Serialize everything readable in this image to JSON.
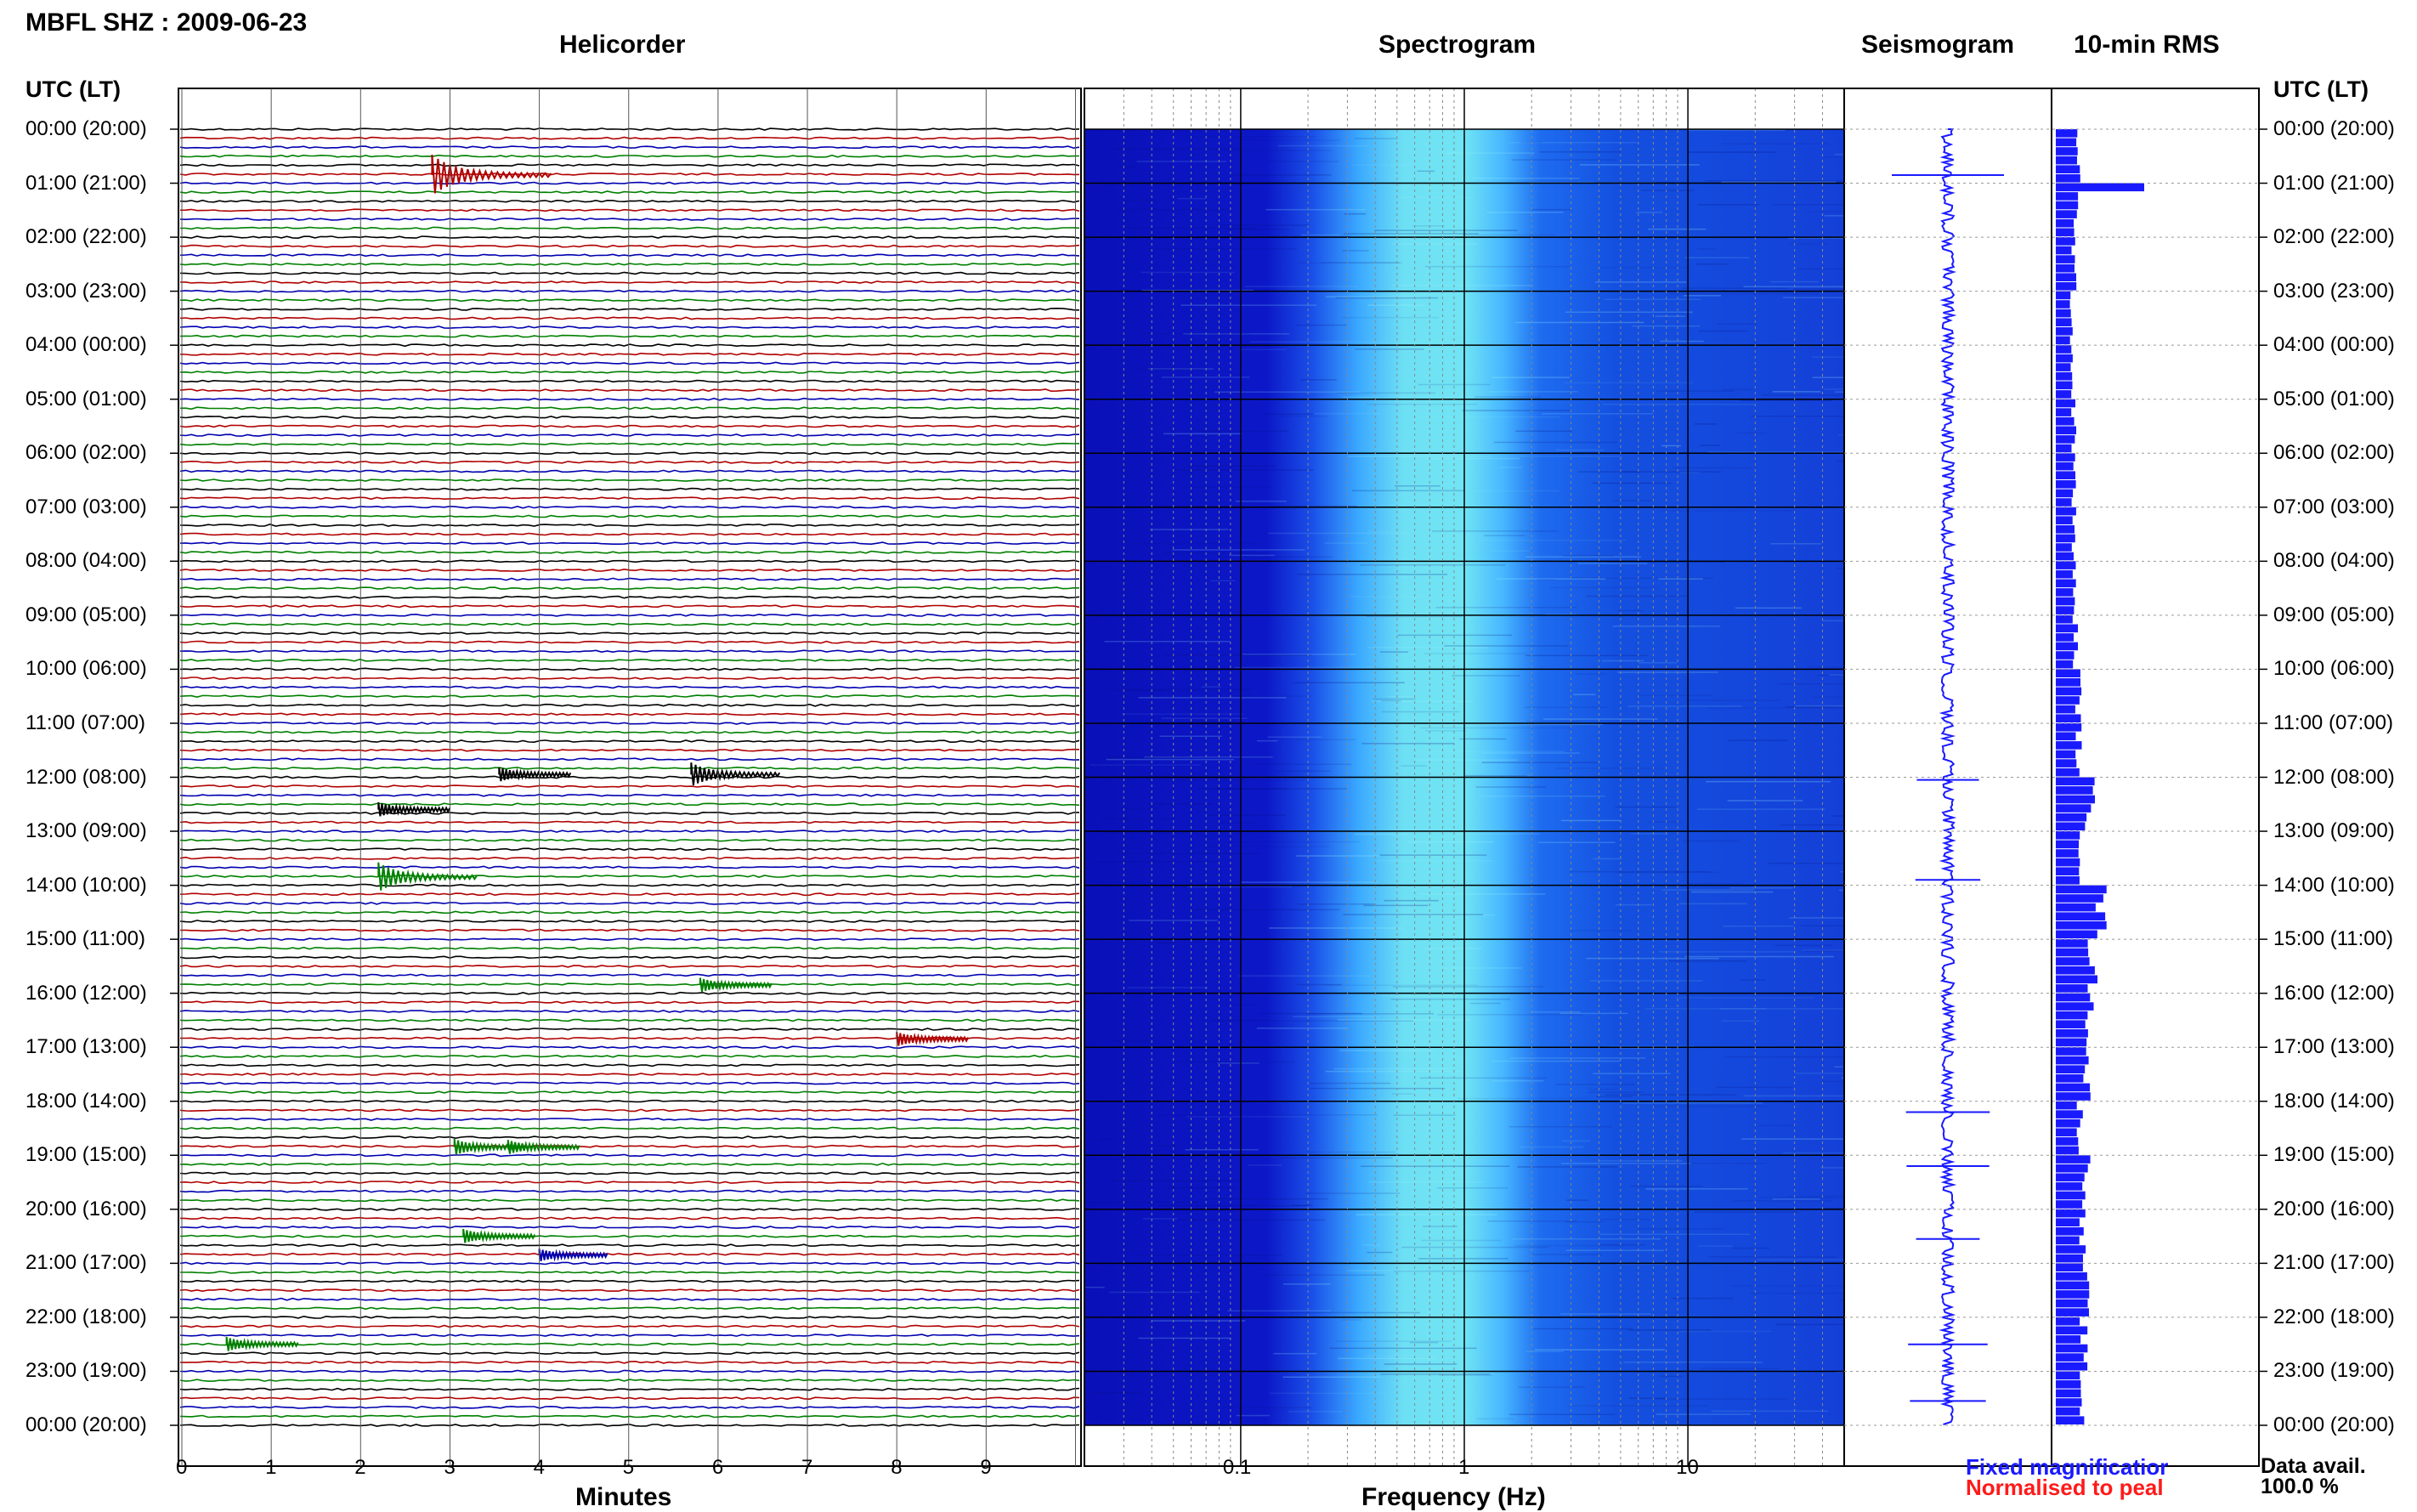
{
  "header": {
    "station_title": "MBFL SHZ : 2009-06-23",
    "helicorder_title": "Helicorder",
    "spectrogram_title": "Spectrogram",
    "seismogram_title": "Seismogram",
    "rms_title": "10-min RMS",
    "left_axis_title": "UTC (LT)",
    "right_axis_title": "UTC (LT)"
  },
  "time_labels": [
    "00:00 (20:00)",
    "01:00 (21:00)",
    "02:00 (22:00)",
    "03:00 (23:00)",
    "04:00 (00:00)",
    "05:00 (01:00)",
    "06:00 (02:00)",
    "07:00 (03:00)",
    "08:00 (04:00)",
    "09:00 (05:00)",
    "10:00 (06:00)",
    "11:00 (07:00)",
    "12:00 (08:00)",
    "13:00 (09:00)",
    "14:00 (10:00)",
    "15:00 (11:00)",
    "16:00 (12:00)",
    "17:00 (13:00)",
    "18:00 (14:00)",
    "19:00 (15:00)",
    "20:00 (16:00)",
    "21:00 (17:00)",
    "22:00 (18:00)",
    "23:00 (19:00)",
    "00:00 (20:00)"
  ],
  "footer": {
    "minutes_label": "Minutes",
    "frequency_label": "Frequency (Hz)",
    "legend_fixed": "Fixed magnificatior",
    "legend_normalised": "Normalised to peal",
    "data_avail_label": "Data avail.",
    "data_avail_value": "100.0 %"
  },
  "colors": {
    "trace_cycle": [
      "#000000",
      "#b00000",
      "#0000b0",
      "#008000"
    ],
    "spectrogram_low": "#0a14c8",
    "spectrogram_mid": "#1e8cff",
    "spectrogram_high": "#7ff0f0",
    "seismogram": "#1a1aff",
    "rms": "#1a1aff",
    "legend_blue": "#1a1aff",
    "legend_red": "#ff1a1a"
  },
  "chart_data": [
    {
      "type": "line",
      "name": "helicorder",
      "title": "Helicorder",
      "xlabel": "Minutes",
      "ylabel": "UTC (LT)",
      "x_ticks": [
        "0",
        "1",
        "2",
        "3",
        "4",
        "5",
        "6",
        "7",
        "8",
        "9"
      ],
      "xlim": [
        0,
        10
      ],
      "lines_per_hour": 6,
      "hours": 24,
      "events": [
        {
          "hour": 0.85,
          "minute": 2.8,
          "amp": 1.0,
          "color": 1
        },
        {
          "hour": 11.95,
          "minute": 3.55,
          "amp": 0.3,
          "color": 0
        },
        {
          "hour": 11.95,
          "minute": 5.7,
          "amp": 0.55,
          "color": 0
        },
        {
          "hour": 12.6,
          "minute": 2.2,
          "amp": 0.3,
          "color": 0
        },
        {
          "hour": 13.85,
          "minute": 2.2,
          "amp": 0.7,
          "color": 3
        },
        {
          "hour": 15.85,
          "minute": 5.8,
          "amp": 0.3,
          "color": 3
        },
        {
          "hour": 16.85,
          "minute": 8.0,
          "amp": 0.3,
          "color": 1
        },
        {
          "hour": 18.85,
          "minute": 3.05,
          "amp": 0.35,
          "color": 3
        },
        {
          "hour": 18.85,
          "minute": 3.65,
          "amp": 0.3,
          "color": 3
        },
        {
          "hour": 20.5,
          "minute": 3.15,
          "amp": 0.3,
          "color": 3
        },
        {
          "hour": 20.85,
          "minute": 4.0,
          "amp": 0.25,
          "color": 2
        },
        {
          "hour": 22.5,
          "minute": 0.5,
          "amp": 0.3,
          "color": 3
        }
      ]
    },
    {
      "type": "heatmap",
      "name": "spectrogram",
      "title": "Spectrogram",
      "xlabel": "Frequency (Hz)",
      "x_scale": "log",
      "xlim": [
        0.02,
        50
      ],
      "x_ticks": [
        "0.1",
        "1",
        "10"
      ],
      "band_low_hz": 0.3,
      "band_high_hz": 2.0
    },
    {
      "type": "line",
      "name": "seismogram",
      "title": "Seismogram",
      "spikes_hours": [
        0.85,
        12.05,
        13.9,
        18.2,
        19.2,
        20.55,
        22.5,
        23.55
      ]
    },
    {
      "type": "bar",
      "name": "rms",
      "title": "10-min RMS",
      "values_relative": [
        0.28,
        1.0,
        0.22,
        0.2,
        0.2,
        0.22,
        0.22,
        0.22,
        0.22,
        0.24,
        0.28,
        0.28,
        0.42,
        0.32,
        0.55,
        0.45,
        0.42,
        0.38,
        0.3,
        0.38,
        0.32,
        0.36,
        0.34,
        0.32
      ]
    }
  ]
}
